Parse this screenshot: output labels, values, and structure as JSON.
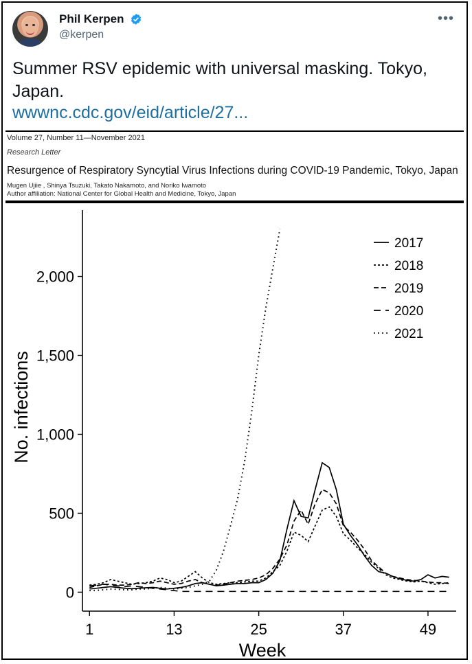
{
  "tweet": {
    "display_name": "Phil Kerpen",
    "handle": "@kerpen",
    "verified": true,
    "more_icon": "more-horizontal-icon",
    "text": "Summer RSV epidemic with universal masking. Tokyo, Japan.",
    "link": "wwwnc.cdc.gov/eid/article/27..."
  },
  "article": {
    "volume": "Volume 27, Number 11—November 2021",
    "type": "Research Letter",
    "title": "Resurgence of Respiratory Syncytial Virus Infections during COVID-19 Pandemic, Tokyo, Japan",
    "authors": "Mugen Ujiie , Shinya Tsuzuki, Takato Nakamoto, and Noriko Iwamoto",
    "affiliation": "Author affiliation: National Center for Global Health and Medicine, Tokyo, Japan"
  },
  "colors": {
    "accent_link": "#1d6fa0",
    "verified": "#1d9bf0"
  },
  "chart_data": {
    "type": "line",
    "xlabel": "Week",
    "ylabel": "No. infections",
    "xlim": [
      0,
      53
    ],
    "ylim": [
      -120,
      2420
    ],
    "xticks": [
      1,
      13,
      25,
      37,
      49
    ],
    "yticks": [
      0,
      500,
      1000,
      1500,
      2000
    ],
    "ytick_labels": [
      "0",
      "500",
      "1,000",
      "1,500",
      "2,000"
    ],
    "xtick_labels": [
      "1",
      "13",
      "25",
      "37",
      "49"
    ],
    "legend_position": "top-right",
    "grid": false,
    "series": [
      {
        "name": "2017",
        "dash": "solid",
        "x": [
          1,
          2,
          3,
          4,
          5,
          6,
          7,
          8,
          9,
          10,
          11,
          12,
          13,
          14,
          15,
          16,
          17,
          18,
          19,
          20,
          21,
          22,
          23,
          24,
          25,
          26,
          27,
          28,
          29,
          30,
          31,
          32,
          33,
          34,
          35,
          36,
          37,
          38,
          39,
          40,
          41,
          42,
          43,
          44,
          45,
          46,
          47,
          48,
          49,
          50,
          51,
          52
        ],
        "y": [
          20,
          25,
          30,
          35,
          30,
          25,
          22,
          25,
          28,
          30,
          25,
          20,
          25,
          30,
          40,
          55,
          60,
          50,
          40,
          45,
          50,
          55,
          55,
          60,
          60,
          80,
          120,
          200,
          400,
          580,
          480,
          470,
          650,
          820,
          790,
          650,
          430,
          360,
          300,
          230,
          170,
          130,
          120,
          100,
          85,
          75,
          70,
          80,
          110,
          90,
          100,
          95
        ]
      },
      {
        "name": "2018",
        "dash": "short",
        "x": [
          1,
          2,
          3,
          4,
          5,
          6,
          7,
          8,
          9,
          10,
          11,
          12,
          13,
          14,
          15,
          16,
          17,
          18,
          19,
          20,
          21,
          22,
          23,
          24,
          25,
          26,
          27,
          28,
          29,
          30,
          31,
          32,
          33,
          34,
          35,
          36,
          37,
          38,
          39,
          40,
          41,
          42,
          43,
          44,
          45,
          46,
          47,
          48,
          49,
          50,
          51,
          52
        ],
        "y": [
          45,
          50,
          60,
          80,
          70,
          60,
          50,
          55,
          60,
          70,
          90,
          80,
          60,
          70,
          100,
          130,
          90,
          60,
          50,
          55,
          60,
          60,
          65,
          70,
          70,
          90,
          130,
          170,
          260,
          380,
          360,
          320,
          420,
          520,
          540,
          480,
          370,
          330,
          280,
          240,
          190,
          150,
          110,
          90,
          80,
          70,
          65,
          70,
          60,
          50,
          55,
          60
        ]
      },
      {
        "name": "2019",
        "dash": "medium",
        "x": [
          1,
          2,
          3,
          4,
          5,
          6,
          7,
          8,
          9,
          10,
          11,
          12,
          13,
          14,
          15,
          16,
          17,
          18,
          19,
          20,
          21,
          22,
          23,
          24,
          25,
          26,
          27,
          28,
          29,
          30,
          31,
          32,
          33,
          34,
          35,
          36,
          37,
          38,
          39,
          40,
          41,
          42,
          43,
          44,
          45,
          46,
          47,
          48,
          49,
          50,
          51,
          52
        ],
        "y": [
          30,
          40,
          50,
          50,
          45,
          45,
          50,
          60,
          55,
          60,
          70,
          60,
          50,
          55,
          70,
          80,
          60,
          50,
          45,
          50,
          60,
          70,
          75,
          80,
          90,
          110,
          150,
          210,
          300,
          450,
          520,
          430,
          560,
          650,
          630,
          560,
          420,
          380,
          330,
          270,
          200,
          160,
          120,
          100,
          90,
          80,
          75,
          70,
          65,
          60,
          60,
          55
        ]
      },
      {
        "name": "2020",
        "dash": "long",
        "x": [
          1,
          2,
          3,
          4,
          5,
          6,
          7,
          8,
          9,
          10,
          11,
          12,
          13,
          14,
          15,
          16,
          17,
          18,
          19,
          20,
          21,
          22,
          23,
          24,
          25,
          26,
          27,
          28,
          29,
          30,
          31,
          32,
          33,
          34,
          35,
          36,
          37,
          38,
          39,
          40,
          41,
          42,
          43,
          44,
          45,
          46,
          47,
          48,
          49,
          50,
          51,
          52
        ],
        "y": [
          40,
          45,
          50,
          45,
          40,
          35,
          40,
          35,
          30,
          25,
          20,
          15,
          10,
          5,
          5,
          5,
          5,
          5,
          5,
          5,
          5,
          5,
          5,
          5,
          5,
          5,
          5,
          5,
          5,
          5,
          5,
          5,
          5,
          5,
          5,
          5,
          5,
          5,
          5,
          5,
          5,
          5,
          5,
          5,
          5,
          5,
          5,
          5,
          5,
          5,
          5,
          5
        ]
      },
      {
        "name": "2021",
        "dash": "dotted",
        "x": [
          1,
          2,
          3,
          4,
          5,
          6,
          7,
          8,
          9,
          10,
          11,
          12,
          13,
          14,
          15,
          16,
          17,
          18,
          19,
          20,
          21,
          22,
          23,
          24,
          25,
          26,
          27,
          28
        ],
        "y": [
          10,
          12,
          15,
          20,
          18,
          15,
          15,
          20,
          20,
          25,
          30,
          25,
          20,
          25,
          30,
          40,
          50,
          70,
          140,
          260,
          420,
          590,
          830,
          1140,
          1500,
          1800,
          2050,
          2300
        ]
      }
    ]
  }
}
